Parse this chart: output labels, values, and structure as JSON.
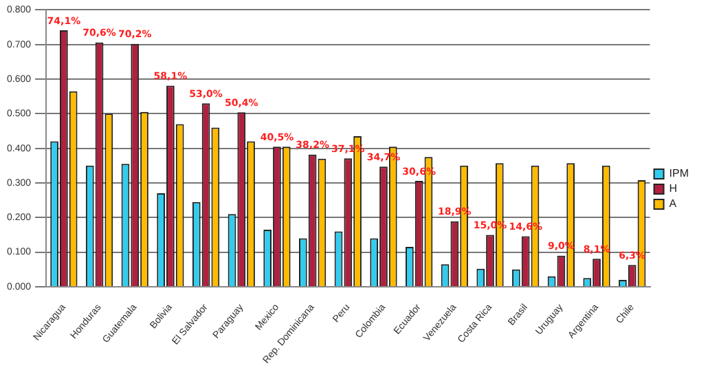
{
  "chart_data": {
    "type": "bar",
    "categories": [
      "Nicaragua",
      "Honduras",
      "Guatemala",
      "Bolivia",
      "El Salvador",
      "Paraguay",
      "Mexico",
      "Rep. Dominicana",
      "Peru",
      "Colombia",
      "Ecuador",
      "Venezuela",
      "Costa Rica",
      "Brasil",
      "Uruguay",
      "Argentina",
      "Chile"
    ],
    "series": [
      {
        "name": "IPM",
        "color": "#33ccee",
        "values": [
          0.42,
          0.35,
          0.355,
          0.27,
          0.245,
          0.21,
          0.165,
          0.14,
          0.16,
          0.14,
          0.115,
          0.065,
          0.052,
          0.05,
          0.03,
          0.025,
          0.02
        ]
      },
      {
        "name": "H",
        "color": "#b0203f",
        "values": [
          0.741,
          0.706,
          0.702,
          0.581,
          0.53,
          0.504,
          0.405,
          0.382,
          0.371,
          0.347,
          0.306,
          0.189,
          0.15,
          0.146,
          0.09,
          0.081,
          0.063
        ],
        "value_labels": [
          "74,1%",
          "70,6%",
          "70,2%",
          "58,1%",
          "53,0%",
          "50,4%",
          "40,5%",
          "38,2%",
          "37,1%",
          "34,7%",
          "30,6%",
          "18,9%",
          "15,0%",
          "14,6%",
          "9,0%",
          "8,1%",
          "6,3%"
        ]
      },
      {
        "name": "A",
        "color": "#ffbb00",
        "values": [
          0.565,
          0.5,
          0.505,
          0.47,
          0.46,
          0.42,
          0.405,
          0.37,
          0.435,
          0.405,
          0.375,
          0.35,
          0.357,
          0.35,
          0.357,
          0.35,
          0.308
        ]
      }
    ],
    "ylim": [
      0,
      0.8
    ],
    "yticks": [
      {
        "value": 0,
        "label": "0.000"
      },
      {
        "value": 0.1,
        "label": "0.100"
      },
      {
        "value": 0.2,
        "label": "0.200"
      },
      {
        "value": 0.3,
        "label": "0.300"
      },
      {
        "value": 0.4,
        "label": "0.400"
      },
      {
        "value": 0.5,
        "label": "0.500"
      },
      {
        "value": 0.6,
        "label": "0.600"
      },
      {
        "value": 0.7,
        "label": "0.700"
      },
      {
        "value": 0.8,
        "label": "0.800"
      }
    ],
    "grid": "y",
    "legend": "right"
  }
}
